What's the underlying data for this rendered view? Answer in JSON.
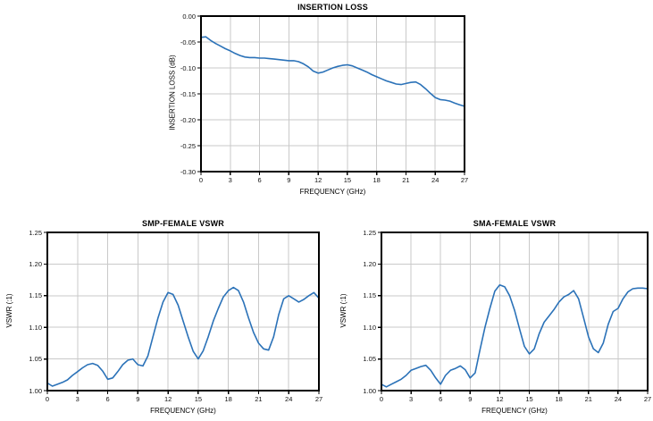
{
  "figure": {
    "background": "#ffffff",
    "line_color": "#2B72B8",
    "grid_color": "#C9C9C9",
    "border_color": "#000000"
  },
  "chart_data": [
    {
      "type": "line",
      "title": "INSERTION LOSS",
      "xlabel": "FREQUENCY (GHz)",
      "ylabel": "INSERTION LOSS (dB)",
      "xlim": [
        0,
        27
      ],
      "ylim": [
        -0.3,
        0.0
      ],
      "x_ticks": [
        0,
        3,
        6,
        9,
        12,
        15,
        18,
        21,
        24,
        27
      ],
      "x_tick_labels": [
        "0",
        "3",
        "6",
        "9",
        "12",
        "15",
        "18",
        "21",
        "24",
        "27"
      ],
      "y_tick_labels": [
        "0.00",
        "-0.05",
        "-0.10",
        "-0.15",
        "-0.20",
        "-0.25",
        "-0.30"
      ],
      "grid": true,
      "legend": "none",
      "line_color": "#2B72B8",
      "grid_color": "#C9C9C9",
      "series": [
        {
          "name": "insertion-loss",
          "points": [
            [
              0,
              -0.041
            ],
            [
              0.5,
              -0.04
            ],
            [
              1,
              -0.047
            ],
            [
              1.5,
              -0.053
            ],
            [
              2,
              -0.058
            ],
            [
              2.5,
              -0.063
            ],
            [
              3,
              -0.067
            ],
            [
              3.5,
              -0.072
            ],
            [
              4,
              -0.076
            ],
            [
              4.5,
              -0.079
            ],
            [
              5,
              -0.08
            ],
            [
              5.5,
              -0.08
            ],
            [
              6,
              -0.081
            ],
            [
              6.5,
              -0.081
            ],
            [
              7,
              -0.082
            ],
            [
              7.5,
              -0.083
            ],
            [
              8,
              -0.084
            ],
            [
              8.5,
              -0.085
            ],
            [
              9,
              -0.086
            ],
            [
              9.5,
              -0.086
            ],
            [
              10,
              -0.088
            ],
            [
              10.5,
              -0.092
            ],
            [
              11,
              -0.098
            ],
            [
              11.5,
              -0.106
            ],
            [
              12,
              -0.11
            ],
            [
              12.5,
              -0.108
            ],
            [
              13,
              -0.104
            ],
            [
              13.5,
              -0.1
            ],
            [
              14,
              -0.097
            ],
            [
              14.5,
              -0.095
            ],
            [
              15,
              -0.094
            ],
            [
              15.5,
              -0.096
            ],
            [
              16,
              -0.1
            ],
            [
              16.5,
              -0.104
            ],
            [
              17,
              -0.108
            ],
            [
              17.5,
              -0.113
            ],
            [
              18,
              -0.117
            ],
            [
              18.5,
              -0.121
            ],
            [
              19,
              -0.125
            ],
            [
              19.5,
              -0.128
            ],
            [
              20,
              -0.131
            ],
            [
              20.5,
              -0.132
            ],
            [
              21,
              -0.13
            ],
            [
              21.5,
              -0.128
            ],
            [
              22,
              -0.127
            ],
            [
              22.5,
              -0.132
            ],
            [
              23,
              -0.14
            ],
            [
              23.5,
              -0.149
            ],
            [
              24,
              -0.157
            ],
            [
              24.5,
              -0.161
            ],
            [
              25,
              -0.162
            ],
            [
              25.5,
              -0.164
            ],
            [
              26,
              -0.168
            ],
            [
              26.5,
              -0.171
            ],
            [
              27,
              -0.174
            ]
          ]
        }
      ]
    },
    {
      "type": "line",
      "title": "SMP-FEMALE VSWR",
      "xlabel": "FREQUENCY (GHz)",
      "ylabel": "VSWR (:1)",
      "xlim": [
        0,
        27
      ],
      "ylim": [
        1.0,
        1.25
      ],
      "x_ticks": [
        0,
        3,
        6,
        9,
        12,
        15,
        18,
        21,
        24,
        27
      ],
      "x_tick_labels": [
        "0",
        "3",
        "6",
        "9",
        "12",
        "15",
        "18",
        "21",
        "24",
        "27"
      ],
      "y_tick_labels": [
        "1.25",
        "1.20",
        "1.15",
        "1.10",
        "1.05",
        "1.00"
      ],
      "grid": true,
      "legend": "none",
      "line_color": "#2B72B8",
      "grid_color": "#C9C9C9",
      "series": [
        {
          "name": "smp-female-vswr",
          "points": [
            [
              0,
              1.012
            ],
            [
              0.5,
              1.007
            ],
            [
              1,
              1.01
            ],
            [
              1.5,
              1.013
            ],
            [
              2,
              1.017
            ],
            [
              2.5,
              1.024
            ],
            [
              3,
              1.03
            ],
            [
              3.5,
              1.036
            ],
            [
              4,
              1.041
            ],
            [
              4.5,
              1.043
            ],
            [
              5,
              1.04
            ],
            [
              5.5,
              1.031
            ],
            [
              6,
              1.018
            ],
            [
              6.5,
              1.02
            ],
            [
              7,
              1.03
            ],
            [
              7.5,
              1.041
            ],
            [
              8,
              1.048
            ],
            [
              8.5,
              1.05
            ],
            [
              9,
              1.041
            ],
            [
              9.5,
              1.039
            ],
            [
              10,
              1.055
            ],
            [
              10.5,
              1.085
            ],
            [
              11,
              1.115
            ],
            [
              11.5,
              1.14
            ],
            [
              12,
              1.155
            ],
            [
              12.5,
              1.152
            ],
            [
              13,
              1.135
            ],
            [
              13.5,
              1.11
            ],
            [
              14,
              1.085
            ],
            [
              14.5,
              1.062
            ],
            [
              15,
              1.05
            ],
            [
              15.5,
              1.063
            ],
            [
              16,
              1.085
            ],
            [
              16.5,
              1.11
            ],
            [
              17,
              1.13
            ],
            [
              17.5,
              1.148
            ],
            [
              18,
              1.158
            ],
            [
              18.5,
              1.163
            ],
            [
              19,
              1.158
            ],
            [
              19.5,
              1.14
            ],
            [
              20,
              1.115
            ],
            [
              20.5,
              1.092
            ],
            [
              21,
              1.075
            ],
            [
              21.5,
              1.066
            ],
            [
              22,
              1.064
            ],
            [
              22.5,
              1.085
            ],
            [
              23,
              1.12
            ],
            [
              23.5,
              1.145
            ],
            [
              24,
              1.15
            ],
            [
              24.5,
              1.145
            ],
            [
              25,
              1.14
            ],
            [
              25.5,
              1.144
            ],
            [
              26,
              1.15
            ],
            [
              26.5,
              1.155
            ],
            [
              27,
              1.146
            ]
          ]
        }
      ]
    },
    {
      "type": "line",
      "title": "SMA-FEMALE VSWR",
      "xlabel": "FREQUENCY (GHz)",
      "ylabel": "VSWR (:1)",
      "xlim": [
        0,
        27
      ],
      "ylim": [
        1.0,
        1.25
      ],
      "x_ticks": [
        0,
        3,
        6,
        9,
        12,
        15,
        18,
        21,
        24,
        27
      ],
      "x_tick_labels": [
        "0",
        "3",
        "6",
        "9",
        "12",
        "15",
        "18",
        "21",
        "24",
        "27"
      ],
      "y_tick_labels": [
        "1.25",
        "1.20",
        "1.15",
        "1.10",
        "1.05",
        "1.00"
      ],
      "grid": true,
      "legend": "none",
      "line_color": "#2B72B8",
      "grid_color": "#C9C9C9",
      "series": [
        {
          "name": "sma-female-vswr",
          "points": [
            [
              0,
              1.01
            ],
            [
              0.5,
              1.006
            ],
            [
              1,
              1.01
            ],
            [
              1.5,
              1.014
            ],
            [
              2,
              1.018
            ],
            [
              2.5,
              1.024
            ],
            [
              3,
              1.032
            ],
            [
              3.5,
              1.035
            ],
            [
              4,
              1.038
            ],
            [
              4.5,
              1.04
            ],
            [
              5,
              1.032
            ],
            [
              5.5,
              1.02
            ],
            [
              6,
              1.01
            ],
            [
              6.5,
              1.024
            ],
            [
              7,
              1.032
            ],
            [
              7.5,
              1.035
            ],
            [
              8,
              1.039
            ],
            [
              8.5,
              1.033
            ],
            [
              9,
              1.02
            ],
            [
              9.5,
              1.028
            ],
            [
              10,
              1.065
            ],
            [
              10.5,
              1.1
            ],
            [
              11,
              1.13
            ],
            [
              11.5,
              1.157
            ],
            [
              12,
              1.167
            ],
            [
              12.5,
              1.164
            ],
            [
              13,
              1.15
            ],
            [
              13.5,
              1.127
            ],
            [
              14,
              1.098
            ],
            [
              14.5,
              1.07
            ],
            [
              15,
              1.058
            ],
            [
              15.5,
              1.066
            ],
            [
              16,
              1.09
            ],
            [
              16.5,
              1.108
            ],
            [
              17,
              1.118
            ],
            [
              17.5,
              1.128
            ],
            [
              18,
              1.14
            ],
            [
              18.5,
              1.148
            ],
            [
              19,
              1.152
            ],
            [
              19.5,
              1.158
            ],
            [
              20,
              1.145
            ],
            [
              20.5,
              1.115
            ],
            [
              21,
              1.085
            ],
            [
              21.5,
              1.066
            ],
            [
              22,
              1.06
            ],
            [
              22.5,
              1.075
            ],
            [
              23,
              1.105
            ],
            [
              23.5,
              1.125
            ],
            [
              24,
              1.13
            ],
            [
              24.5,
              1.145
            ],
            [
              25,
              1.156
            ],
            [
              25.5,
              1.161
            ],
            [
              26,
              1.162
            ],
            [
              26.5,
              1.162
            ],
            [
              27,
              1.161
            ]
          ]
        }
      ]
    }
  ]
}
